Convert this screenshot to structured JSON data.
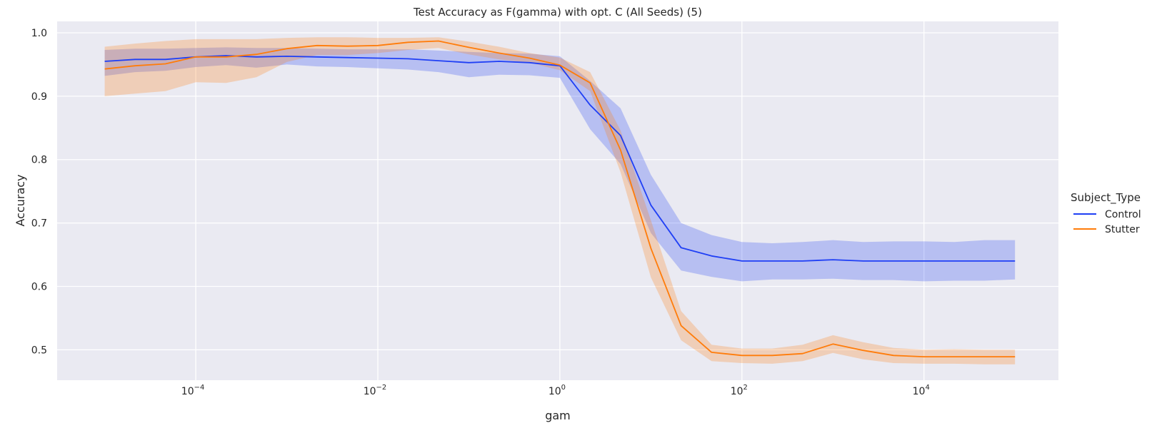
{
  "chart_data": {
    "type": "line",
    "title": "Test Accuracy as F(gamma) with opt. C (All Seeds) (5)",
    "xlabel": "gam",
    "ylabel": "Accuracy",
    "x_scale": "log",
    "xlim": [
      3e-06,
      300000
    ],
    "ylim": [
      0.452,
      1.018
    ],
    "grid": true,
    "legend_title": "Subject_Type",
    "legend_position": "right",
    "x_ticks": [
      {
        "value": 0.0001,
        "base": "10",
        "exp": "−4"
      },
      {
        "value": 0.01,
        "base": "10",
        "exp": "−2"
      },
      {
        "value": 1,
        "base": "10",
        "exp": "0"
      },
      {
        "value": 100,
        "base": "10",
        "exp": "2"
      },
      {
        "value": 10000,
        "base": "10",
        "exp": "4"
      }
    ],
    "y_ticks": [
      {
        "value": 0.5,
        "label": "0.5"
      },
      {
        "value": 0.6,
        "label": "0.6"
      },
      {
        "value": 0.7,
        "label": "0.7"
      },
      {
        "value": 0.8,
        "label": "0.8"
      },
      {
        "value": 0.9,
        "label": "0.9"
      },
      {
        "value": 1.0,
        "label": "1.0"
      }
    ],
    "x": [
      1e-05,
      2.15e-05,
      4.64e-05,
      0.0001,
      0.000215,
      0.000464,
      0.001,
      0.00215,
      0.00464,
      0.01,
      0.0215,
      0.0464,
      0.1,
      0.215,
      0.464,
      1,
      2.15,
      4.64,
      10,
      21.5,
      46.4,
      100,
      215,
      464,
      1000,
      2150,
      4640,
      10000,
      21500,
      46400,
      100000
    ],
    "series": [
      {
        "name": "Control",
        "color": "#1f3ff5",
        "values": [
          0.955,
          0.958,
          0.958,
          0.962,
          0.964,
          0.962,
          0.963,
          0.962,
          0.961,
          0.96,
          0.959,
          0.956,
          0.953,
          0.955,
          0.953,
          0.948,
          0.886,
          0.838,
          0.728,
          0.661,
          0.648,
          0.64,
          0.64,
          0.64,
          0.642,
          0.64,
          0.64,
          0.64,
          0.64,
          0.64,
          0.64
        ],
        "lower": [
          0.932,
          0.938,
          0.94,
          0.946,
          0.949,
          0.945,
          0.95,
          0.947,
          0.946,
          0.944,
          0.942,
          0.938,
          0.93,
          0.934,
          0.933,
          0.929,
          0.848,
          0.793,
          0.684,
          0.625,
          0.615,
          0.608,
          0.611,
          0.611,
          0.612,
          0.61,
          0.61,
          0.608,
          0.609,
          0.609,
          0.611
        ],
        "upper": [
          0.973,
          0.975,
          0.975,
          0.976,
          0.977,
          0.976,
          0.976,
          0.975,
          0.974,
          0.974,
          0.974,
          0.972,
          0.97,
          0.968,
          0.967,
          0.963,
          0.924,
          0.881,
          0.776,
          0.7,
          0.681,
          0.67,
          0.668,
          0.67,
          0.673,
          0.67,
          0.671,
          0.671,
          0.67,
          0.673,
          0.673
        ]
      },
      {
        "name": "Stutter",
        "color": "#ff7c0a",
        "values": [
          0.943,
          0.948,
          0.951,
          0.962,
          0.962,
          0.966,
          0.975,
          0.98,
          0.979,
          0.98,
          0.985,
          0.987,
          0.977,
          0.968,
          0.96,
          0.949,
          0.921,
          0.815,
          0.66,
          0.538,
          0.496,
          0.491,
          0.491,
          0.494,
          0.509,
          0.499,
          0.491,
          0.489,
          0.489,
          0.489,
          0.489
        ],
        "lower": [
          0.9,
          0.904,
          0.908,
          0.922,
          0.921,
          0.93,
          0.954,
          0.965,
          0.965,
          0.968,
          0.973,
          0.976,
          0.966,
          0.958,
          0.953,
          0.941,
          0.908,
          0.78,
          0.614,
          0.515,
          0.482,
          0.479,
          0.478,
          0.482,
          0.495,
          0.485,
          0.479,
          0.478,
          0.478,
          0.477,
          0.477
        ],
        "upper": [
          0.978,
          0.983,
          0.987,
          0.99,
          0.99,
          0.99,
          0.992,
          0.993,
          0.993,
          0.992,
          0.992,
          0.993,
          0.986,
          0.978,
          0.968,
          0.961,
          0.938,
          0.846,
          0.704,
          0.561,
          0.508,
          0.502,
          0.502,
          0.508,
          0.523,
          0.512,
          0.503,
          0.5,
          0.501,
          0.5,
          0.5
        ]
      }
    ]
  }
}
